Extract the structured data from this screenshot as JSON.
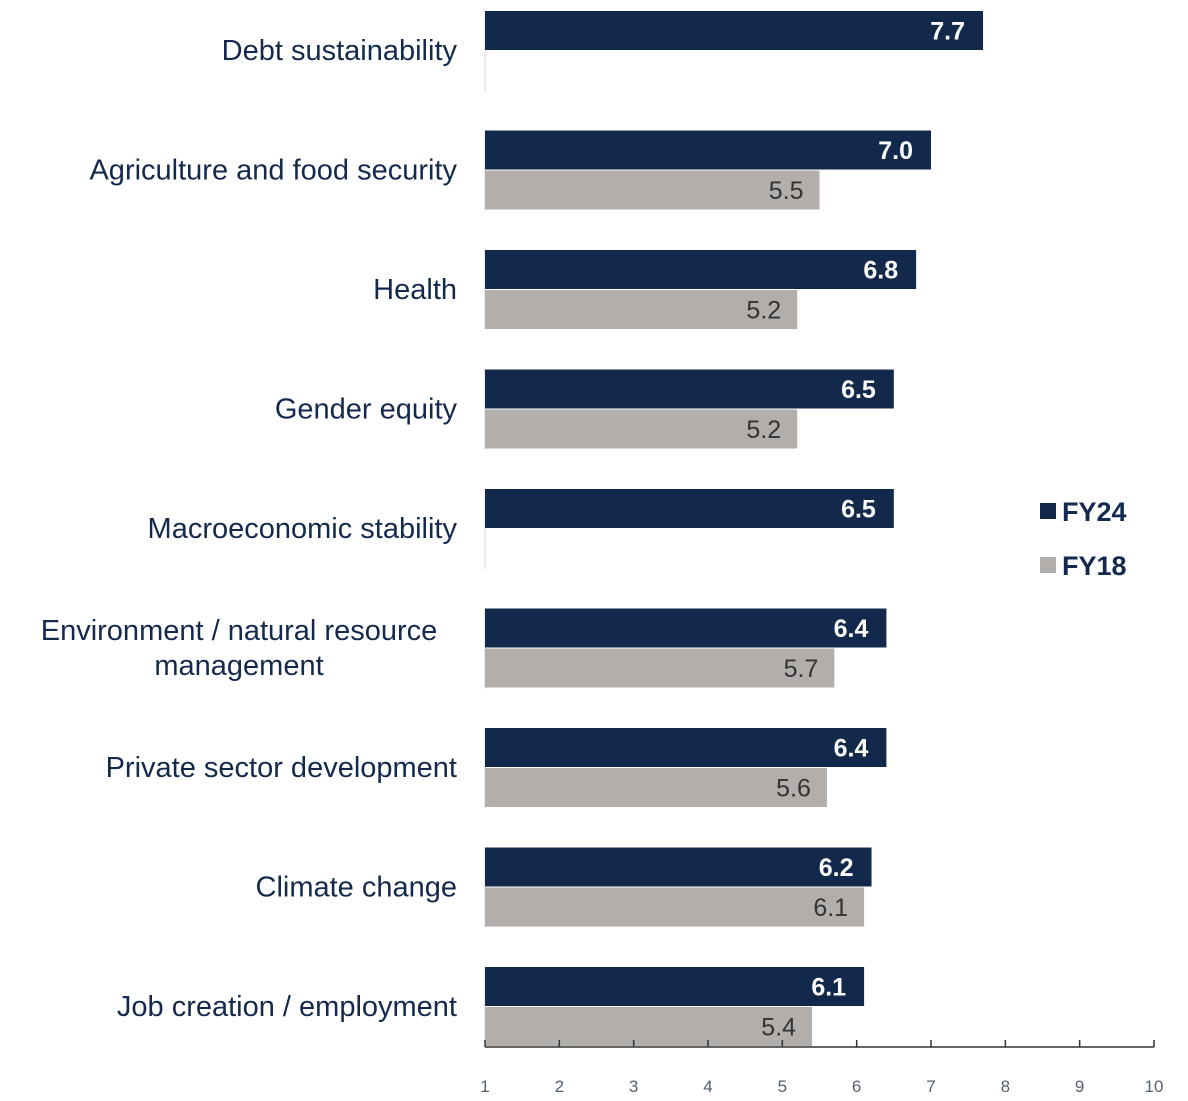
{
  "chart_data": {
    "type": "bar",
    "orientation": "horizontal",
    "categories": [
      [
        "Debt sustainability"
      ],
      [
        "Agriculture and food security"
      ],
      [
        "Health"
      ],
      [
        "Gender equity"
      ],
      [
        "Macroeconomic stability"
      ],
      [
        "Environment / natural resource",
        "management"
      ],
      [
        "Private sector development"
      ],
      [
        "Climate change"
      ],
      [
        "Job creation / employment"
      ]
    ],
    "series": [
      {
        "name": "FY24",
        "color": "#13294b",
        "values": [
          7.7,
          7.0,
          6.8,
          6.5,
          6.5,
          6.4,
          6.4,
          6.2,
          6.1
        ],
        "labels": [
          "7.7",
          "7.0",
          "6.8",
          "6.5",
          "6.5",
          "6.4",
          "6.4",
          "6.2",
          "6.1"
        ]
      },
      {
        "name": "FY18",
        "color": "#b1aeac",
        "values": [
          null,
          5.5,
          5.2,
          5.2,
          null,
          5.7,
          5.6,
          6.1,
          5.4
        ],
        "labels": [
          "",
          "5.5",
          "5.2",
          "5.2",
          "",
          "5.7",
          "5.6",
          "6.1",
          "5.4"
        ]
      }
    ],
    "xlim": [
      1,
      10
    ],
    "xticks": [
      "1",
      "2",
      "3",
      "4",
      "5",
      "6",
      "7",
      "8",
      "9",
      "10"
    ],
    "title": "",
    "xlabel": "",
    "ylabel": "",
    "grid": false,
    "legend_position": "right"
  }
}
